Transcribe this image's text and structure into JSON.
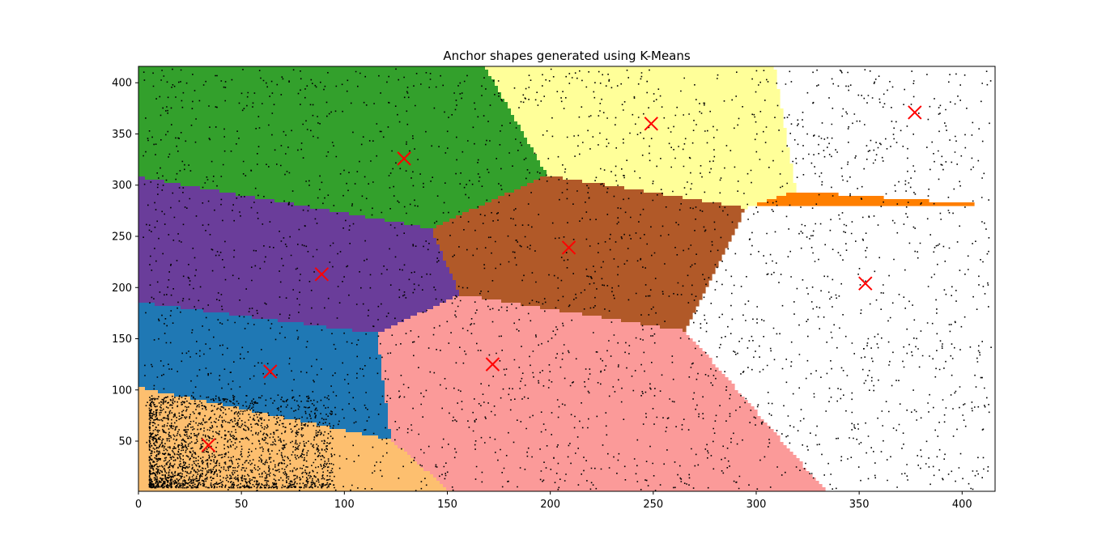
{
  "chart_data": {
    "type": "scatter",
    "title": "Anchor shapes generated using K-Means",
    "xlabel": "",
    "ylabel": "",
    "xlim": [
      0,
      416
    ],
    "ylim": [
      1,
      416
    ],
    "x_ticks": [
      0,
      50,
      100,
      150,
      200,
      250,
      300,
      350,
      400
    ],
    "y_ticks": [
      50,
      100,
      150,
      200,
      250,
      300,
      350,
      400
    ],
    "grid": false,
    "legend": "none",
    "point_color": "#000000",
    "centroid_color": "#ff0000",
    "centroid_marker": "x",
    "clusters": [
      {
        "region_color": "#fdbf6f",
        "centroid": [
          34,
          46
        ]
      },
      {
        "region_color": "#1f78b4",
        "centroid": [
          64,
          118
        ]
      },
      {
        "region_color": "#6a3d9a",
        "centroid": [
          89,
          213
        ]
      },
      {
        "region_color": "#33a02c",
        "centroid": [
          129,
          326
        ]
      },
      {
        "region_color": "#fb9a99",
        "centroid": [
          172,
          125
        ]
      },
      {
        "region_color": "#b15928",
        "centroid": [
          209,
          239
        ]
      },
      {
        "region_color": "#ffff99",
        "centroid": [
          249,
          360
        ]
      },
      {
        "region_color": "#ff7f00",
        "centroid": [
          353,
          204
        ]
      },
      {
        "region_color": "#a6cee3",
        "centroid": [
          377,
          371
        ]
      }
    ]
  }
}
